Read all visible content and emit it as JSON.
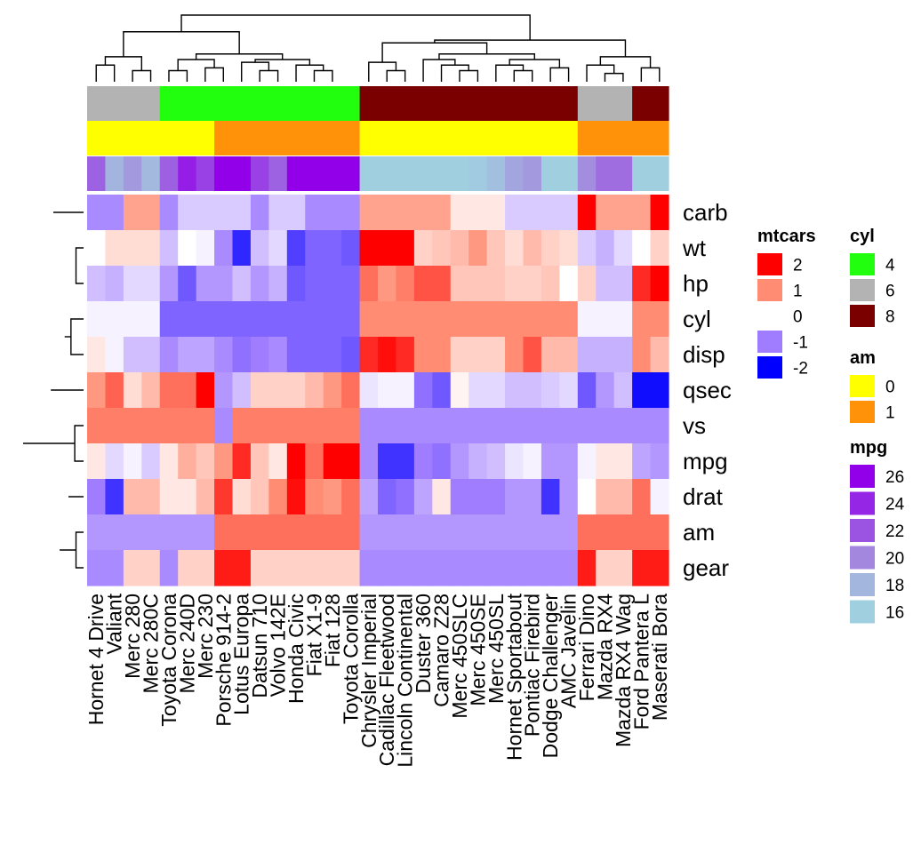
{
  "chart_data": {
    "type": "heatmap",
    "title": "",
    "xlabel": "",
    "ylabel": "",
    "columns": [
      "Hornet 4 Drive",
      "Valiant",
      "Merc 280",
      "Merc 280C",
      "Toyota Corona",
      "Merc 240D",
      "Merc 230",
      "Porsche 914-2",
      "Lotus Europa",
      "Datsun 710",
      "Volvo 142E",
      "Honda Civic",
      "Fiat X1-9",
      "Fiat 128",
      "Toyota Corolla",
      "Chrysler Imperial",
      "Cadillac Fleetwood",
      "Lincoln Continental",
      "Duster 360",
      "Camaro Z28",
      "Merc 450SLC",
      "Merc 450SE",
      "Merc 450SL",
      "Hornet Sportabout",
      "Pontiac Firebird",
      "Dodge Challenger",
      "AMC Javelin",
      "Ferrari Dino",
      "Mazda RX4",
      "Mazda RX4 Wag",
      "Ford Pantera L",
      "Maserati Bora"
    ],
    "rows": [
      "carb",
      "wt",
      "hp",
      "cyl",
      "disp",
      "qsec",
      "vs",
      "mpg",
      "drat",
      "am",
      "gear"
    ],
    "values": [
      [
        -0.9,
        -0.9,
        0.8,
        0.8,
        -0.9,
        -0.4,
        -0.4,
        -0.4,
        -0.4,
        -0.9,
        -0.4,
        -0.4,
        -0.9,
        -0.9,
        -0.9,
        0.8,
        0.8,
        0.8,
        0.8,
        0.8,
        0.2,
        0.2,
        0.2,
        -0.4,
        -0.4,
        -0.4,
        -0.4,
        2.0,
        0.8,
        0.8,
        0.8,
        2.1
      ],
      [
        0.0,
        0.3,
        0.3,
        0.3,
        -0.5,
        0.0,
        -0.1,
        -0.9,
        -1.7,
        -0.5,
        -0.3,
        -1.5,
        -1.2,
        -1.2,
        -1.3,
        2.2,
        2.1,
        2.2,
        0.4,
        0.5,
        0.6,
        0.9,
        0.5,
        0.3,
        0.6,
        0.4,
        0.3,
        -0.4,
        -0.6,
        -0.3,
        0.0,
        0.4
      ],
      [
        -0.5,
        -0.6,
        -0.3,
        -0.3,
        -0.8,
        -1.3,
        -0.8,
        -0.8,
        -0.5,
        -0.8,
        -0.6,
        -1.3,
        -1.2,
        -1.2,
        -1.2,
        1.2,
        0.9,
        1.1,
        1.4,
        1.4,
        0.5,
        0.5,
        0.5,
        0.4,
        0.4,
        0.5,
        0.0,
        0.4,
        -0.5,
        -0.5,
        1.7,
        2.7
      ],
      [
        -0.1,
        -0.1,
        -0.1,
        -0.1,
        -1.2,
        -1.2,
        -1.2,
        -1.2,
        -1.2,
        -1.2,
        -1.2,
        -1.2,
        -1.2,
        -1.2,
        -1.2,
        1.0,
        1.0,
        1.0,
        1.0,
        1.0,
        1.0,
        1.0,
        1.0,
        1.0,
        1.0,
        1.0,
        1.0,
        -0.1,
        -0.1,
        -0.1,
        1.0,
        1.0
      ],
      [
        0.2,
        -0.1,
        -0.5,
        -0.5,
        -0.9,
        -0.7,
        -0.7,
        -0.9,
        -1.1,
        -1.0,
        -0.9,
        -1.2,
        -1.2,
        -1.2,
        -1.3,
        1.7,
        1.9,
        1.7,
        1.0,
        1.0,
        0.4,
        0.4,
        0.4,
        1.0,
        1.4,
        0.6,
        0.6,
        -0.6,
        -0.6,
        -0.6,
        1.0,
        0.6
      ],
      [
        0.9,
        1.3,
        0.3,
        0.6,
        1.2,
        1.2,
        2.8,
        -0.8,
        -0.5,
        0.4,
        0.4,
        0.4,
        0.6,
        0.9,
        1.2,
        -0.2,
        -0.1,
        -0.1,
        -1.1,
        -1.3,
        0.1,
        -0.3,
        -0.3,
        -0.5,
        -0.5,
        -0.4,
        -0.3,
        -1.3,
        -0.8,
        -0.5,
        -1.9,
        -1.9
      ],
      [
        1.1,
        1.1,
        1.1,
        1.1,
        1.1,
        1.1,
        1.1,
        -0.9,
        1.1,
        1.1,
        1.1,
        1.1,
        1.1,
        1.1,
        1.1,
        -0.9,
        -0.9,
        -0.9,
        -0.9,
        -0.9,
        -0.9,
        -0.9,
        -0.9,
        -0.9,
        -0.9,
        -0.9,
        -0.9,
        -0.9,
        -0.9,
        -0.9,
        -0.9,
        -0.9
      ],
      [
        0.2,
        -0.3,
        -0.1,
        -0.4,
        0.2,
        0.7,
        0.5,
        0.9,
        1.7,
        0.5,
        0.2,
        2.0,
        1.2,
        2.3,
        2.3,
        -0.9,
        -1.6,
        -1.6,
        -1.0,
        -1.1,
        -0.8,
        -0.6,
        -0.5,
        -0.2,
        -0.1,
        -0.8,
        -0.8,
        -0.1,
        0.2,
        0.2,
        -0.7,
        -0.8
      ],
      [
        -1.0,
        -1.6,
        0.6,
        0.6,
        0.2,
        0.2,
        0.6,
        1.6,
        0.3,
        0.5,
        1.0,
        1.9,
        1.0,
        0.9,
        1.2,
        -0.7,
        -1.2,
        -1.1,
        -0.7,
        0.2,
        -1.0,
        -1.0,
        -1.0,
        -0.8,
        -0.8,
        -1.6,
        -0.8,
        0.0,
        0.6,
        0.6,
        1.2,
        -0.1
      ],
      [
        -0.8,
        -0.8,
        -0.8,
        -0.8,
        -0.8,
        -0.8,
        -0.8,
        1.2,
        1.2,
        1.2,
        1.2,
        1.2,
        1.2,
        1.2,
        1.2,
        -0.8,
        -0.8,
        -0.8,
        -0.8,
        -0.8,
        -0.8,
        -0.8,
        -0.8,
        -0.8,
        -0.8,
        -0.8,
        -0.8,
        1.2,
        1.2,
        1.2,
        1.2,
        1.2
      ],
      [
        -0.9,
        -0.9,
        0.4,
        0.4,
        -0.9,
        0.4,
        0.4,
        1.8,
        1.8,
        0.4,
        0.4,
        0.4,
        0.4,
        0.4,
        0.4,
        -0.9,
        -0.9,
        -0.9,
        -0.9,
        -0.9,
        -0.9,
        -0.9,
        -0.9,
        -0.9,
        -0.9,
        -0.9,
        -0.9,
        1.8,
        0.4,
        0.4,
        1.8,
        1.8
      ]
    ],
    "annotations": {
      "cyl": [
        6,
        6,
        6,
        6,
        4,
        4,
        4,
        4,
        4,
        4,
        4,
        4,
        4,
        4,
        4,
        8,
        8,
        8,
        8,
        8,
        8,
        8,
        8,
        8,
        8,
        8,
        8,
        6,
        6,
        6,
        8,
        8
      ],
      "am": [
        0,
        0,
        0,
        0,
        0,
        0,
        0,
        1,
        1,
        1,
        1,
        1,
        1,
        1,
        1,
        0,
        0,
        0,
        0,
        0,
        0,
        0,
        0,
        0,
        0,
        0,
        0,
        1,
        1,
        1,
        1,
        1
      ],
      "mpg": [
        21.4,
        18.1,
        19.2,
        17.8,
        21.5,
        24.4,
        22.8,
        26.0,
        30.4,
        22.8,
        21.4,
        30.4,
        27.3,
        32.4,
        33.9,
        14.7,
        10.4,
        10.4,
        14.3,
        13.3,
        15.2,
        16.4,
        17.3,
        18.7,
        19.2,
        15.5,
        15.2,
        19.7,
        21.0,
        21.0,
        15.8,
        15.0
      ]
    },
    "row_dendrogram": [
      [
        1,
        2,
        0.3
      ],
      [
        3,
        4,
        0.5
      ],
      [
        -2,
        -3,
        0.75
      ],
      [
        0,
        -4,
        1.2
      ],
      [
        6,
        7,
        0.35
      ],
      [
        8,
        -6,
        0.6
      ],
      [
        9,
        10,
        0.3
      ],
      [
        -8,
        -9,
        0.75
      ],
      [
        -7,
        -10,
        0.95
      ],
      [
        5,
        -11,
        1.3
      ],
      [
        -5,
        -12,
        2.4
      ]
    ],
    "col_dendrogram": [
      [
        2,
        3,
        0.2
      ],
      [
        0,
        1,
        0.3
      ],
      [
        -1,
        -2,
        0.45
      ],
      [
        4,
        5,
        0.2
      ],
      [
        6,
        7,
        0.25
      ],
      [
        -4,
        -5,
        0.4
      ],
      [
        9,
        10,
        0.2
      ],
      [
        8,
        -7,
        0.35
      ],
      [
        12,
        13,
        0.2
      ],
      [
        11,
        -9,
        0.3
      ],
      [
        -8,
        -10,
        0.4
      ],
      [
        -6,
        -11,
        0.5
      ],
      [
        -3,
        -12,
        0.9
      ],
      [
        16,
        17,
        0.2
      ],
      [
        15,
        -14,
        0.35
      ],
      [
        20,
        21,
        0.2
      ],
      [
        19,
        -16,
        0.3
      ],
      [
        18,
        -17,
        0.4
      ],
      [
        23,
        24,
        0.2
      ],
      [
        22,
        -19,
        0.3
      ],
      [
        25,
        26,
        0.25
      ],
      [
        -20,
        -21,
        0.4
      ],
      [
        -18,
        -22,
        0.5
      ],
      [
        -15,
        -23,
        0.7
      ],
      [
        28,
        29,
        0.15
      ],
      [
        27,
        -25,
        0.3
      ],
      [
        30,
        31,
        0.25
      ],
      [
        -26,
        -27,
        0.45
      ],
      [
        -24,
        -28,
        0.75
      ],
      [
        -13,
        -29,
        1.2
      ]
    ],
    "legends": [
      {
        "title": "mtcars",
        "type": "heat",
        "labels": [
          "2",
          "1",
          "0",
          "-1",
          "-2"
        ],
        "colors": [
          "#ff0000",
          "#ff8c73",
          "#ffffff",
          "#a07dff",
          "#0000ff"
        ]
      },
      {
        "title": "cyl",
        "type": "cyl",
        "labels": [
          "4",
          "6",
          "8"
        ],
        "colors": [
          "#22ff0e",
          "#b3b3b3",
          "#7a0000"
        ]
      },
      {
        "title": "am",
        "type": "am",
        "labels": [
          "0",
          "1"
        ],
        "colors": [
          "#ffff00",
          "#ff9209"
        ]
      },
      {
        "title": "mpg",
        "type": "mpg",
        "labels": [
          "26",
          "24",
          "22",
          "20",
          "18",
          "16"
        ],
        "colors": [
          "#9100e8",
          "#9626e6",
          "#9b53e2",
          "#a386de",
          "#a3b6de",
          "#a0d0e0"
        ]
      }
    ]
  }
}
